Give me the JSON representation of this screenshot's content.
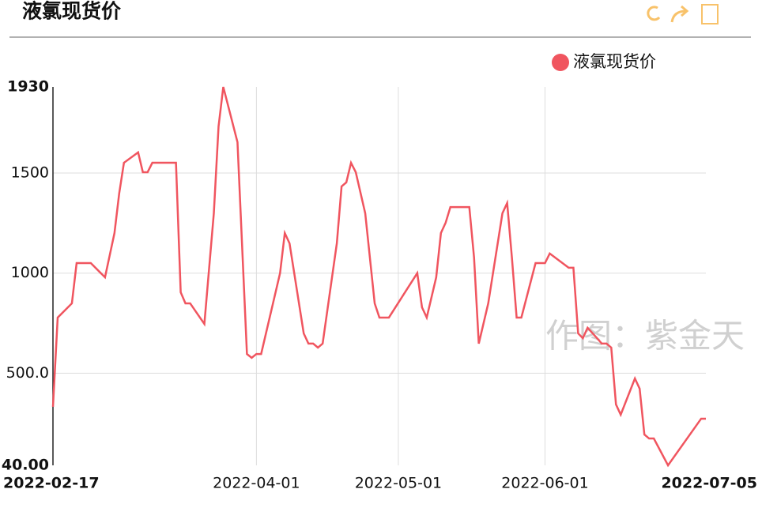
{
  "chart_data": {
    "type": "line",
    "title": "液氯现货价",
    "watermark": "作图：紫金天",
    "x": [
      "2022-02-17",
      "2022-02-18",
      "2022-02-21",
      "2022-02-22",
      "2022-02-25",
      "2022-02-28",
      "2022-03-02",
      "2022-03-03",
      "2022-03-04",
      "2022-03-07",
      "2022-03-08",
      "2022-03-09",
      "2022-03-10",
      "2022-03-15",
      "2022-03-16",
      "2022-03-17",
      "2022-03-18",
      "2022-03-21",
      "2022-03-23",
      "2022-03-24",
      "2022-03-25",
      "2022-03-28",
      "2022-03-30",
      "2022-03-31",
      "2022-04-01",
      "2022-04-02",
      "2022-04-06",
      "2022-04-07",
      "2022-04-08",
      "2022-04-11",
      "2022-04-12",
      "2022-04-13",
      "2022-04-14",
      "2022-04-15",
      "2022-04-18",
      "2022-04-19",
      "2022-04-20",
      "2022-04-21",
      "2022-04-22",
      "2022-04-24",
      "2022-04-26",
      "2022-04-27",
      "2022-04-29",
      "2022-05-05",
      "2022-05-06",
      "2022-05-07",
      "2022-05-09",
      "2022-05-10",
      "2022-05-11",
      "2022-05-12",
      "2022-05-16",
      "2022-05-17",
      "2022-05-18",
      "2022-05-20",
      "2022-05-23",
      "2022-05-24",
      "2022-05-25",
      "2022-05-26",
      "2022-05-27",
      "2022-05-30",
      "2022-06-01",
      "2022-06-02",
      "2022-06-06",
      "2022-06-07",
      "2022-06-08",
      "2022-06-09",
      "2022-06-10",
      "2022-06-12",
      "2022-06-13",
      "2022-06-14",
      "2022-06-15",
      "2022-06-16",
      "2022-06-17",
      "2022-06-20",
      "2022-06-21",
      "2022-06-22",
      "2022-06-23",
      "2022-06-24",
      "2022-06-27",
      "2022-07-04",
      "2022-07-05"
    ],
    "series": [
      {
        "name": "液氯现货价",
        "color": "#f0555f",
        "values": [
          332,
          778,
          849,
          1050,
          1050,
          979,
          1200,
          1398,
          1551,
          1603,
          1504,
          1504,
          1551,
          1551,
          904,
          849,
          849,
          746,
          1299,
          1733,
          1930,
          1654,
          596,
          577,
          596,
          596,
          1000,
          1200,
          1149,
          699,
          648,
          648,
          628,
          648,
          1149,
          1433,
          1453,
          1551,
          1504,
          1299,
          849,
          778,
          778,
          1000,
          829,
          778,
          979,
          1200,
          1252,
          1330,
          1330,
          1078,
          648,
          849,
          1299,
          1350,
          1078,
          778,
          778,
          1050,
          1050,
          1098,
          1027,
          1027,
          699,
          675,
          727,
          675,
          648,
          648,
          628,
          344,
          293,
          474,
          423,
          194,
          174,
          174,
          40,
          273,
          273
        ]
      }
    ],
    "xlim": [
      "2022-02-17",
      "2022-07-05"
    ],
    "xticks": [
      "2022-02-17",
      "2022-04-01",
      "2022-05-01",
      "2022-06-01",
      "2022-07-05"
    ],
    "ylim": [
      40,
      1930
    ],
    "yticks": [
      {
        "value": 40,
        "label": "40.00"
      },
      {
        "value": 500,
        "label": "500.0"
      },
      1000,
      1500,
      1930
    ],
    "grid": true
  }
}
